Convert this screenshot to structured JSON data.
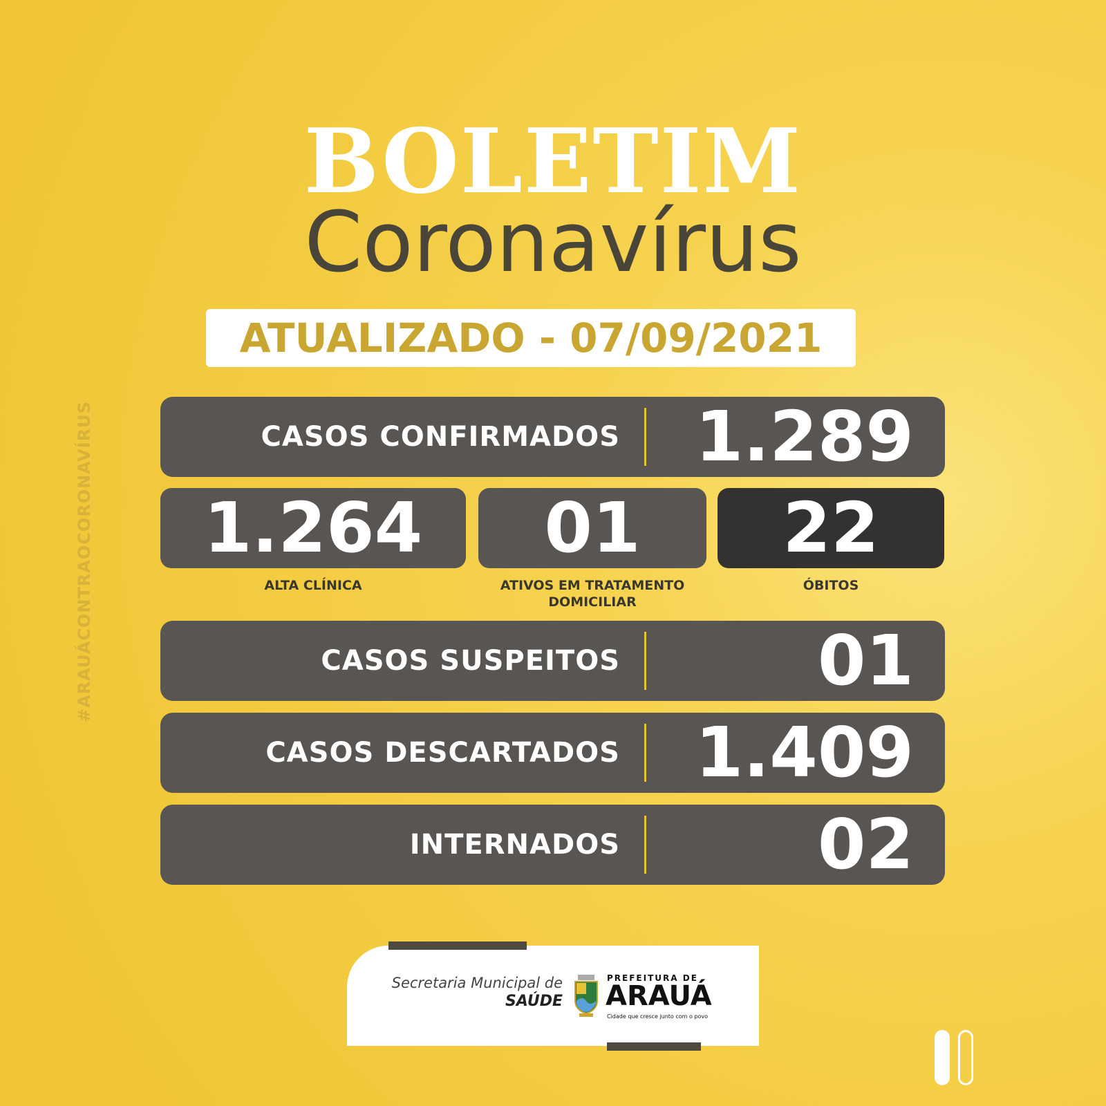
{
  "header": {
    "title": "BOLETIM",
    "subtitle": "Coronavírus",
    "updated": "ATUALIZADO - 07/09/2021"
  },
  "hashtag": "#ARAUÁCONTRAOCORONAVÍRUS",
  "stats": {
    "confirmed": {
      "label": "CASOS CONFIRMADOS",
      "value": "1.289"
    },
    "recovered": {
      "label": "ALTA CLÍNICA",
      "value": "1.264"
    },
    "active": {
      "label": "ATIVOS EM TRATAMENTO DOMICILIAR",
      "value": "01"
    },
    "deaths": {
      "label": "ÓBITOS",
      "value": "22"
    },
    "suspected": {
      "label": "CASOS SUSPEITOS",
      "value": "01"
    },
    "discarded": {
      "label": "CASOS DESCARTADOS",
      "value": "1.409"
    },
    "hospitalized": {
      "label": "INTERNADOS",
      "value": "02"
    }
  },
  "footer": {
    "secretaria": "Secretaria Municipal de",
    "saude": "SAÚDE",
    "prefeitura": "PREFEITURA DE",
    "city": "ARAUÁ",
    "slogan": "Cidade que cresce junto com o povo"
  },
  "colors": {
    "background": "#f2c93c",
    "panel": "#595552",
    "deaths_panel": "#333231",
    "accent": "#e8c33a",
    "title_dark": "#4a4539",
    "date_text": "#c9a531"
  }
}
